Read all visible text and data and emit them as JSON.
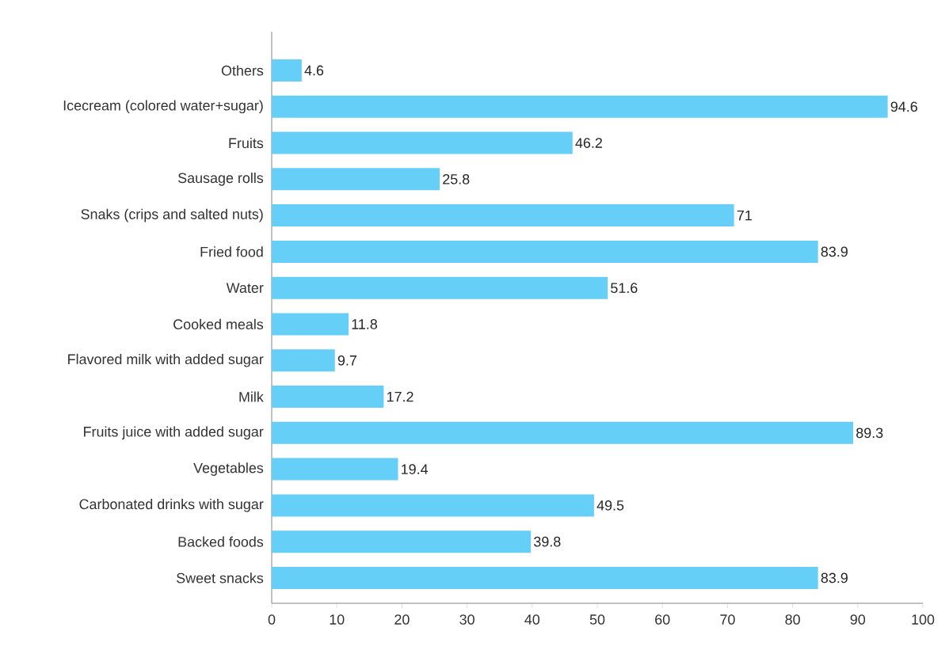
{
  "chart_data": {
    "type": "bar",
    "orientation": "horizontal",
    "categories": [
      "Others",
      "Icecream (colored water+sugar)",
      "Fruits",
      "Sausage rolls",
      "Snaks (crips and salted nuts)",
      "Fried food",
      "Water",
      "Cooked meals",
      "Flavored milk with added sugar",
      "Milk",
      "Fruits juice with added sugar",
      "Vegetables",
      "Carbonated drinks with sugar",
      "Backed foods",
      "Sweet snacks"
    ],
    "values": [
      4.6,
      94.6,
      46.2,
      25.8,
      71,
      83.9,
      51.6,
      11.8,
      9.7,
      17.2,
      89.3,
      19.4,
      49.5,
      39.8,
      83.9
    ],
    "color": "#66cff7",
    "xlim": [
      0,
      100
    ],
    "xticks": [
      0,
      10,
      20,
      30,
      40,
      50,
      60,
      70,
      80,
      90,
      100
    ],
    "data_labels": true,
    "grid": false,
    "legend": false
  }
}
